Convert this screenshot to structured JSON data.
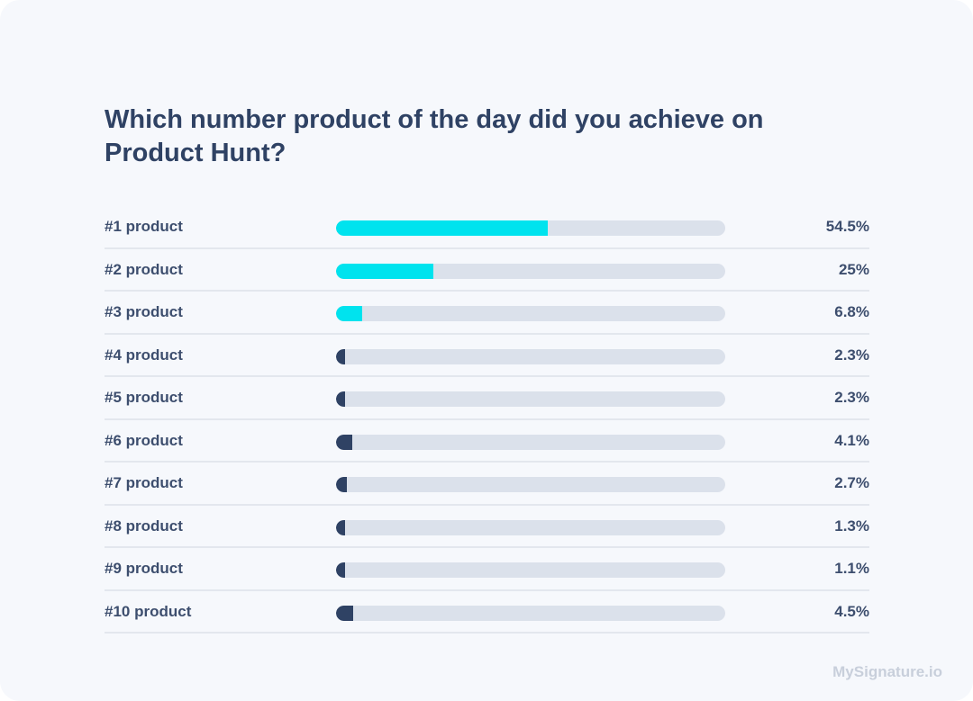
{
  "chart_data": {
    "type": "bar",
    "orientation": "horizontal",
    "title": "Which number product of the day did you achieve on Product Hunt?",
    "categories": [
      "#1 product",
      "#2 product",
      "#3 product",
      "#4 product",
      "#5 product",
      "#6 product",
      "#7 product",
      "#8 product",
      "#9 product",
      "#10 product"
    ],
    "values": [
      54.5,
      25,
      6.8,
      2.3,
      2.3,
      4.1,
      2.7,
      1.3,
      1.1,
      4.5
    ],
    "value_labels": [
      "54.5%",
      "25%",
      "6.8%",
      "2.3%",
      "2.3%",
      "4.1%",
      "2.7%",
      "1.3%",
      "1.1%",
      "4.5%"
    ],
    "xlim": [
      0,
      100
    ],
    "colors": {
      "top3": "#00e3ee",
      "others": "#2f4264",
      "track": "#dbe1eb"
    }
  },
  "watermark": "MySignature.io"
}
